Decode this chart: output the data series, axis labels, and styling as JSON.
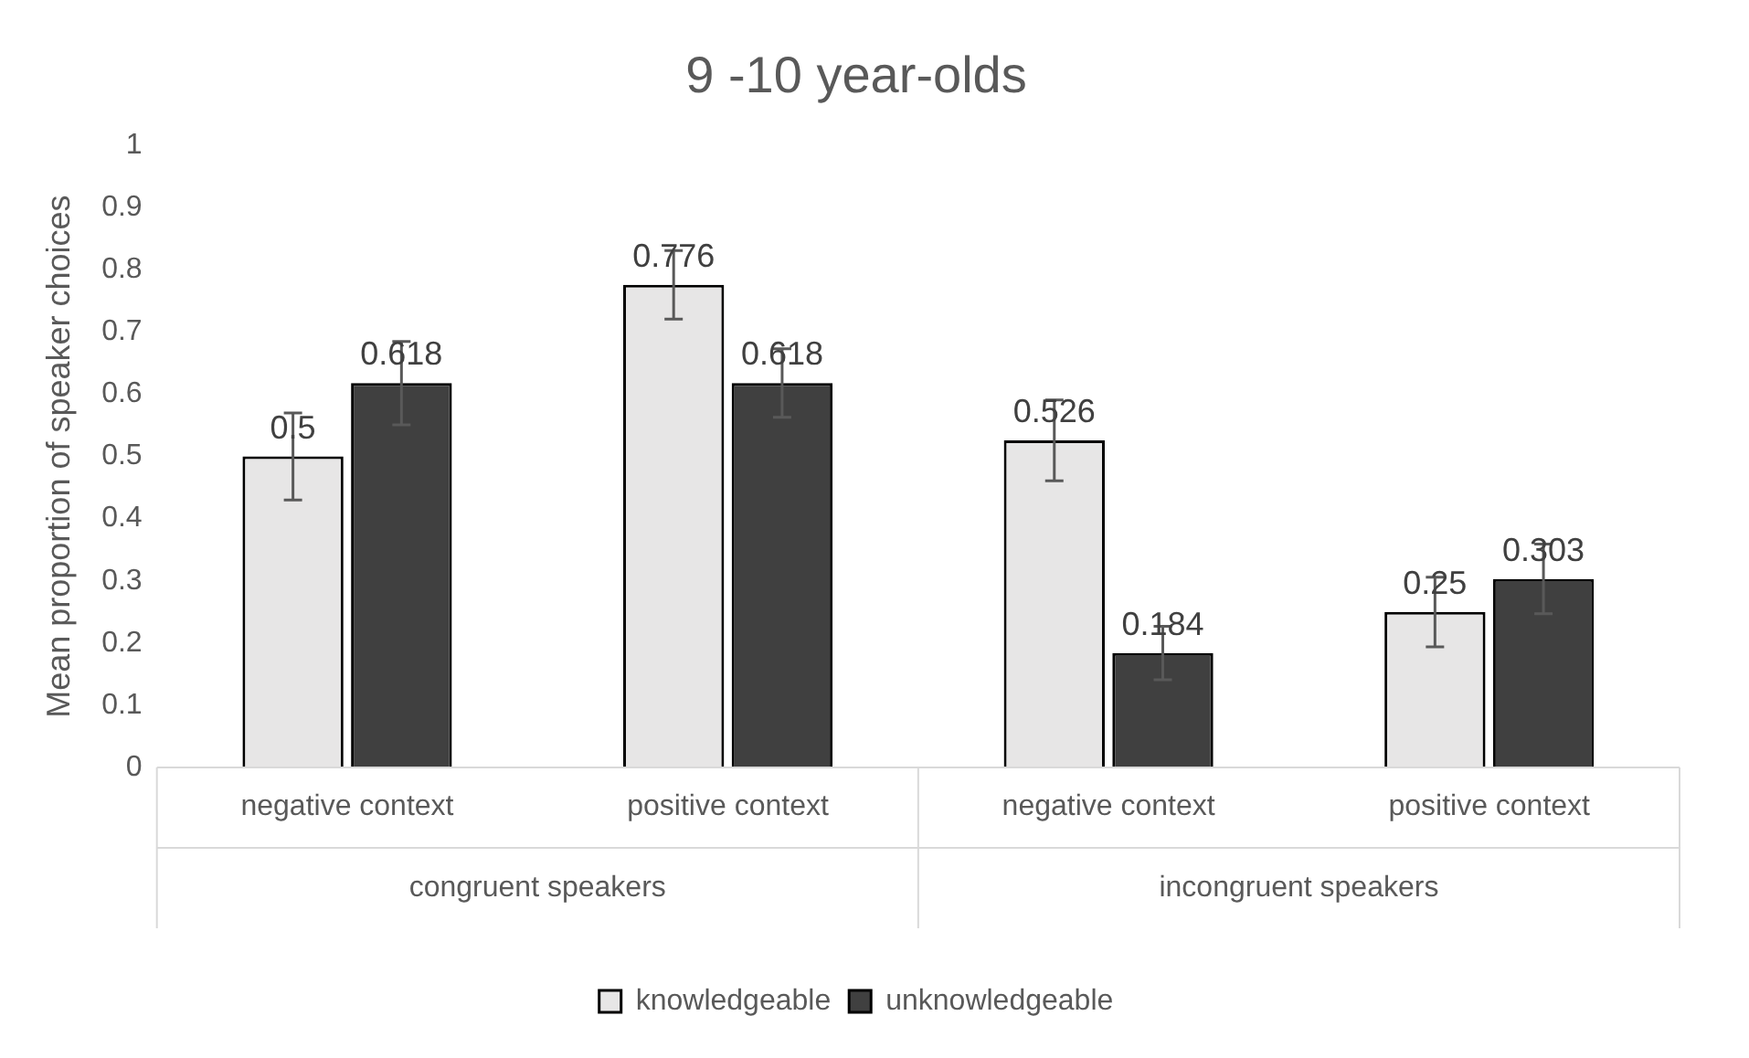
{
  "chart_data": {
    "type": "bar",
    "title": "9 -10 year-olds",
    "ylabel": "Mean proportion of speaker choices",
    "categories": [
      "negative context",
      "positive context",
      "negative context",
      "positive context"
    ],
    "annotations": [
      "congruent speakers",
      "incongruent speakers"
    ],
    "series": [
      {
        "name": "knowledgeable",
        "color": "#e7e6e6",
        "values": [
          0.5,
          0.776,
          0.526,
          0.25
        ],
        "errors": [
          0.07,
          0.055,
          0.065,
          0.056
        ]
      },
      {
        "name": "unknowledgeable",
        "color": "#404040",
        "values": [
          0.618,
          0.618,
          0.184,
          0.303
        ],
        "errors": [
          0.067,
          0.055,
          0.043,
          0.056
        ]
      }
    ],
    "ylim": [
      0,
      1
    ],
    "yticks": [
      0,
      0.1,
      0.2,
      0.3,
      0.4,
      0.5,
      0.6,
      0.7,
      0.8,
      0.9,
      1
    ],
    "grid": false,
    "legend": "bottom",
    "data_labels": true
  }
}
